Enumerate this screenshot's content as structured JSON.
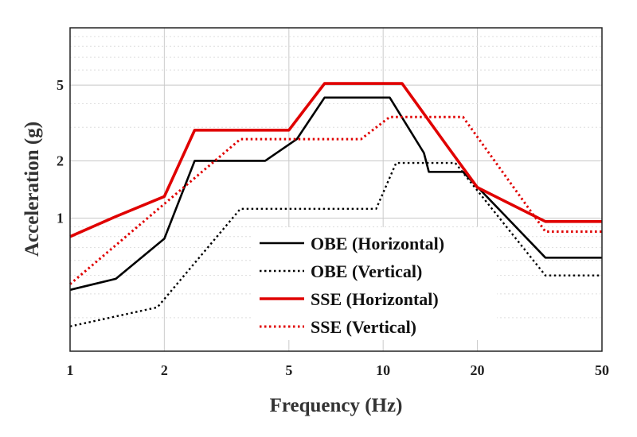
{
  "chart_data": {
    "type": "line",
    "title": "",
    "xlabel": "Frequency (Hz)",
    "ylabel": "Acceleration (g)",
    "x_scale": "log",
    "y_scale": "log",
    "xlim": [
      1,
      50
    ],
    "ylim": [
      0.2,
      10
    ],
    "x_ticks": [
      1,
      2,
      5,
      10,
      20,
      50
    ],
    "x_tick_labels": [
      "1",
      "2",
      "5",
      "10",
      "20",
      "50"
    ],
    "y_ticks": [
      1,
      2,
      5
    ],
    "y_tick_labels": [
      "1",
      "2",
      "5"
    ],
    "grid": true,
    "legend_position": "bottom-center",
    "series": [
      {
        "name": "OBE (Horizontal)",
        "color": "#000000",
        "style": "solid",
        "points": [
          [
            1,
            0.42
          ],
          [
            1.4,
            0.48
          ],
          [
            2,
            0.78
          ],
          [
            2.5,
            2.0
          ],
          [
            4.2,
            2.0
          ],
          [
            5.3,
            2.6
          ],
          [
            6.5,
            4.3
          ],
          [
            10.5,
            4.3
          ],
          [
            13.5,
            2.2
          ],
          [
            14,
            1.75
          ],
          [
            18,
            1.75
          ],
          [
            33,
            0.62
          ],
          [
            50,
            0.62
          ]
        ]
      },
      {
        "name": "OBE (Vertical)",
        "color": "#000000",
        "style": "dotted",
        "points": [
          [
            1,
            0.27
          ],
          [
            1.9,
            0.34
          ],
          [
            3.5,
            1.12
          ],
          [
            9.5,
            1.12
          ],
          [
            11,
            1.95
          ],
          [
            17,
            1.95
          ],
          [
            33,
            0.5
          ],
          [
            50,
            0.5
          ]
        ]
      },
      {
        "name": "SSE (Horizontal)",
        "color": "#e00000",
        "style": "solid",
        "points": [
          [
            1,
            0.8
          ],
          [
            1.4,
            1.02
          ],
          [
            2,
            1.3
          ],
          [
            2.5,
            2.9
          ],
          [
            5,
            2.9
          ],
          [
            6.5,
            5.1
          ],
          [
            11.5,
            5.1
          ],
          [
            16,
            2.4
          ],
          [
            20,
            1.45
          ],
          [
            33,
            0.96
          ],
          [
            50,
            0.96
          ]
        ]
      },
      {
        "name": "SSE (Vertical)",
        "color": "#e00000",
        "style": "dotted",
        "points": [
          [
            1,
            0.45
          ],
          [
            3.5,
            2.6
          ],
          [
            8.5,
            2.6
          ],
          [
            10.5,
            3.4
          ],
          [
            18,
            3.4
          ],
          [
            33,
            0.85
          ],
          [
            50,
            0.85
          ]
        ]
      }
    ]
  }
}
